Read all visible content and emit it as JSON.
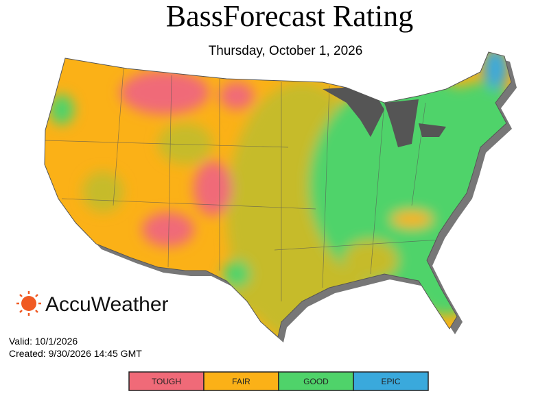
{
  "header": {
    "title": "BassForecast Rating",
    "subtitle": "Thursday, October 1, 2026"
  },
  "logo": {
    "text": "AccuWeather"
  },
  "info": {
    "valid": "Valid: 10/1/2026",
    "created": "Created: 9/30/2026 14:45 GMT"
  },
  "legend": {
    "items": [
      {
        "label": "TOUGH",
        "color": "#f06a78"
      },
      {
        "label": "FAIR",
        "color": "#fbb117"
      },
      {
        "label": "GOOD",
        "color": "#4fd36a"
      },
      {
        "label": "EPIC",
        "color": "#3aa9dc"
      }
    ]
  }
}
